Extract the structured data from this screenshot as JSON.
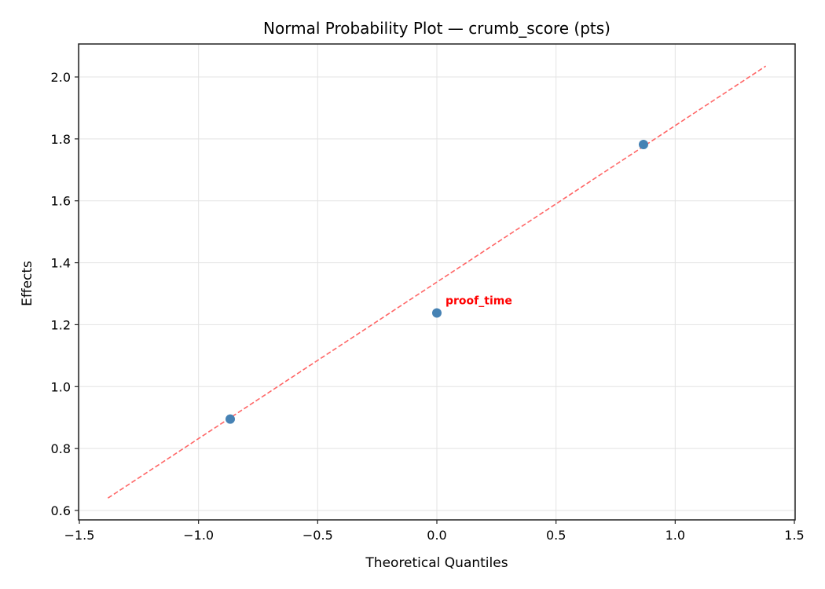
{
  "chart_data": {
    "type": "scatter",
    "title": "Normal Probability Plot — crumb_score (pts)",
    "xlabel": "Theoretical Quantiles",
    "ylabel": "Effects",
    "xlim": [
      -1.5,
      1.5
    ],
    "ylim": [
      0.57,
      2.1
    ],
    "xticks": [
      "−1.5",
      "−1.0",
      "−0.5",
      "0.0",
      "0.5",
      "1.0",
      "1.5"
    ],
    "xtick_values": [
      -1.5,
      -1.0,
      -0.5,
      0.0,
      0.5,
      1.0,
      1.5
    ],
    "yticks": [
      "0.6",
      "0.8",
      "1.0",
      "1.2",
      "1.4",
      "1.6",
      "1.8",
      "2.0"
    ],
    "ytick_values": [
      0.6,
      0.8,
      1.0,
      1.2,
      1.4,
      1.6,
      1.8,
      2.0
    ],
    "grid": true,
    "series": [
      {
        "name": "effects",
        "marker_color": "#4682b4",
        "x": [
          -0.867,
          0.0,
          0.867
        ],
        "y": [
          0.895,
          1.238,
          1.782
        ]
      }
    ],
    "reference_line": {
      "style": "dashed",
      "color": "#ff6666",
      "x": [
        -1.38,
        1.38
      ],
      "y": [
        0.64,
        2.035
      ]
    },
    "annotations": [
      {
        "text": "proof_time",
        "x": 0.0,
        "y": 1.238,
        "color": "#ff0000"
      }
    ]
  }
}
